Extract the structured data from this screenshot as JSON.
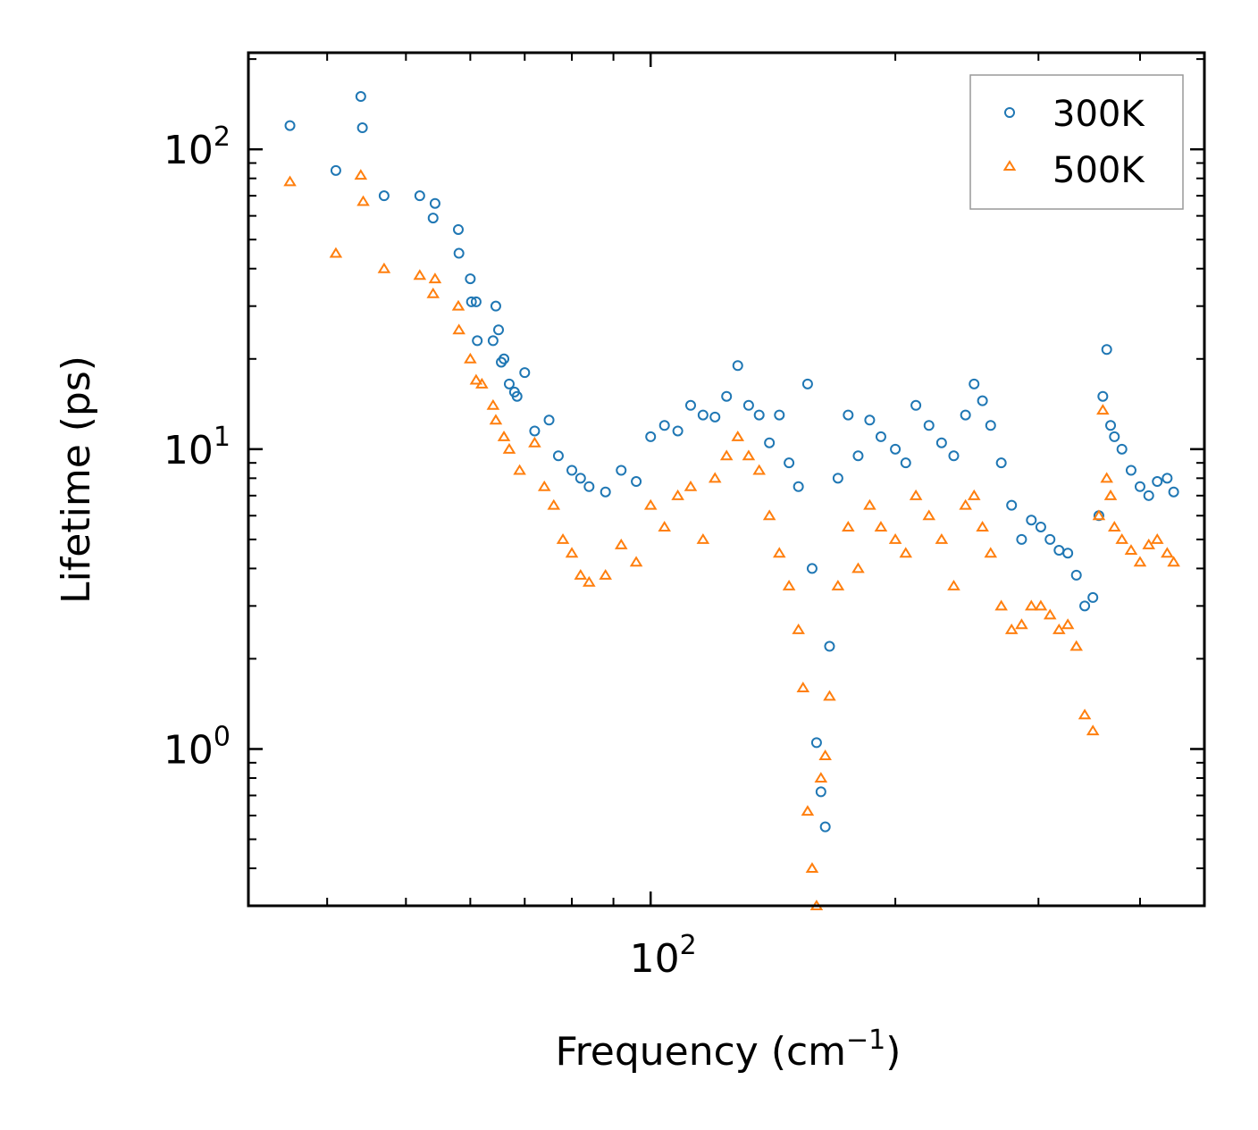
{
  "chart_data": {
    "type": "scatter",
    "title": "",
    "xlabel": "Frequency (cm",
    "xlabel_sup": "−1",
    "xlabel_suffix": ")",
    "ylabel": "Lifetime (ps)",
    "xscale": "log",
    "yscale": "log",
    "xlim": [
      32,
      480
    ],
    "ylim": [
      0.3,
      210
    ],
    "x_ticks": [
      {
        "value": 100,
        "base": "10",
        "exp": "2"
      }
    ],
    "y_ticks": [
      {
        "value": 1,
        "base": "10",
        "exp": "0"
      },
      {
        "value": 10,
        "base": "10",
        "exp": "1"
      },
      {
        "value": 100,
        "base": "10",
        "exp": "2"
      }
    ],
    "legend_position": "top-right",
    "series": [
      {
        "name": "300K",
        "marker": "circle",
        "color": "#1f77b4",
        "points": [
          [
            36,
            120
          ],
          [
            41,
            85
          ],
          [
            44,
            150
          ],
          [
            44.2,
            118
          ],
          [
            47,
            70
          ],
          [
            52,
            70
          ],
          [
            54,
            59
          ],
          [
            54.3,
            66
          ],
          [
            58,
            54
          ],
          [
            58.1,
            45
          ],
          [
            60,
            37
          ],
          [
            60.2,
            31
          ],
          [
            61,
            31
          ],
          [
            61.2,
            23
          ],
          [
            64,
            23
          ],
          [
            64.5,
            30
          ],
          [
            65,
            25
          ],
          [
            65.5,
            19.5
          ],
          [
            66,
            20
          ],
          [
            67,
            16.5
          ],
          [
            68,
            15.5
          ],
          [
            68.5,
            15
          ],
          [
            70,
            18
          ],
          [
            72,
            11.5
          ],
          [
            75,
            12.5
          ],
          [
            77,
            9.5
          ],
          [
            80,
            8.5
          ],
          [
            82,
            8
          ],
          [
            84,
            7.5
          ],
          [
            88,
            7.2
          ],
          [
            92,
            8.5
          ],
          [
            96,
            7.8
          ],
          [
            100,
            11
          ],
          [
            104,
            12
          ],
          [
            108,
            11.5
          ],
          [
            112,
            14
          ],
          [
            116,
            13
          ],
          [
            120,
            12.8
          ],
          [
            124,
            15
          ],
          [
            128,
            19
          ],
          [
            132,
            14
          ],
          [
            136,
            13
          ],
          [
            140,
            10.5
          ],
          [
            144,
            13
          ],
          [
            148,
            9
          ],
          [
            152,
            7.5
          ],
          [
            156,
            16.5
          ],
          [
            158,
            4
          ],
          [
            160,
            1.05
          ],
          [
            162,
            0.72
          ],
          [
            164,
            0.55
          ],
          [
            166,
            2.2
          ],
          [
            170,
            8
          ],
          [
            175,
            13
          ],
          [
            180,
            9.5
          ],
          [
            186,
            12.5
          ],
          [
            192,
            11
          ],
          [
            200,
            10
          ],
          [
            206,
            9
          ],
          [
            212,
            14
          ],
          [
            220,
            12
          ],
          [
            228,
            10.5
          ],
          [
            236,
            9.5
          ],
          [
            244,
            13
          ],
          [
            250,
            16.5
          ],
          [
            256,
            14.5
          ],
          [
            262,
            12
          ],
          [
            270,
            9
          ],
          [
            278,
            6.5
          ],
          [
            286,
            5
          ],
          [
            294,
            5.8
          ],
          [
            302,
            5.5
          ],
          [
            310,
            5
          ],
          [
            318,
            4.6
          ],
          [
            326,
            4.5
          ],
          [
            334,
            3.8
          ],
          [
            342,
            3
          ],
          [
            350,
            3.2
          ],
          [
            356,
            6
          ],
          [
            360,
            15
          ],
          [
            364,
            21.5
          ],
          [
            368,
            12
          ],
          [
            372,
            11
          ],
          [
            380,
            10
          ],
          [
            390,
            8.5
          ],
          [
            400,
            7.5
          ],
          [
            410,
            7
          ],
          [
            420,
            7.8
          ],
          [
            432,
            8
          ],
          [
            440,
            7.2
          ]
        ]
      },
      {
        "name": "500K",
        "marker": "triangle",
        "color": "#ff7f0e",
        "points": [
          [
            36,
            78
          ],
          [
            41,
            45
          ],
          [
            44,
            82
          ],
          [
            44.3,
            67
          ],
          [
            47,
            40
          ],
          [
            52,
            38
          ],
          [
            54,
            33
          ],
          [
            54.3,
            37
          ],
          [
            58,
            30
          ],
          [
            58.1,
            25
          ],
          [
            60,
            20
          ],
          [
            61,
            17
          ],
          [
            62,
            16.5
          ],
          [
            64,
            14
          ],
          [
            64.5,
            12.5
          ],
          [
            66,
            11
          ],
          [
            67,
            10
          ],
          [
            69,
            8.5
          ],
          [
            72,
            10.5
          ],
          [
            74,
            7.5
          ],
          [
            76,
            6.5
          ],
          [
            78,
            5
          ],
          [
            80,
            4.5
          ],
          [
            82,
            3.8
          ],
          [
            84,
            3.6
          ],
          [
            88,
            3.8
          ],
          [
            92,
            4.8
          ],
          [
            96,
            4.2
          ],
          [
            100,
            6.5
          ],
          [
            104,
            5.5
          ],
          [
            108,
            7
          ],
          [
            112,
            7.5
          ],
          [
            116,
            5
          ],
          [
            120,
            8
          ],
          [
            124,
            9.5
          ],
          [
            128,
            11
          ],
          [
            132,
            9.5
          ],
          [
            136,
            8.5
          ],
          [
            140,
            6
          ],
          [
            144,
            4.5
          ],
          [
            148,
            3.5
          ],
          [
            152,
            2.5
          ],
          [
            154,
            1.6
          ],
          [
            156,
            0.62
          ],
          [
            158,
            0.4
          ],
          [
            160,
            0.3
          ],
          [
            162,
            0.8
          ],
          [
            164,
            0.95
          ],
          [
            166,
            1.5
          ],
          [
            170,
            3.5
          ],
          [
            175,
            5.5
          ],
          [
            180,
            4
          ],
          [
            186,
            6.5
          ],
          [
            192,
            5.5
          ],
          [
            200,
            5
          ],
          [
            206,
            4.5
          ],
          [
            212,
            7
          ],
          [
            220,
            6
          ],
          [
            228,
            5
          ],
          [
            236,
            3.5
          ],
          [
            244,
            6.5
          ],
          [
            250,
            7
          ],
          [
            256,
            5.5
          ],
          [
            262,
            4.5
          ],
          [
            270,
            3
          ],
          [
            278,
            2.5
          ],
          [
            286,
            2.6
          ],
          [
            294,
            3
          ],
          [
            302,
            3
          ],
          [
            310,
            2.8
          ],
          [
            318,
            2.5
          ],
          [
            326,
            2.6
          ],
          [
            334,
            2.2
          ],
          [
            342,
            1.3
          ],
          [
            350,
            1.15
          ],
          [
            356,
            6
          ],
          [
            360,
            13.5
          ],
          [
            364,
            8
          ],
          [
            368,
            7
          ],
          [
            372,
            5.5
          ],
          [
            380,
            5
          ],
          [
            390,
            4.6
          ],
          [
            400,
            4.2
          ],
          [
            410,
            4.8
          ],
          [
            420,
            5
          ],
          [
            432,
            4.5
          ],
          [
            440,
            4.2
          ]
        ]
      }
    ]
  }
}
